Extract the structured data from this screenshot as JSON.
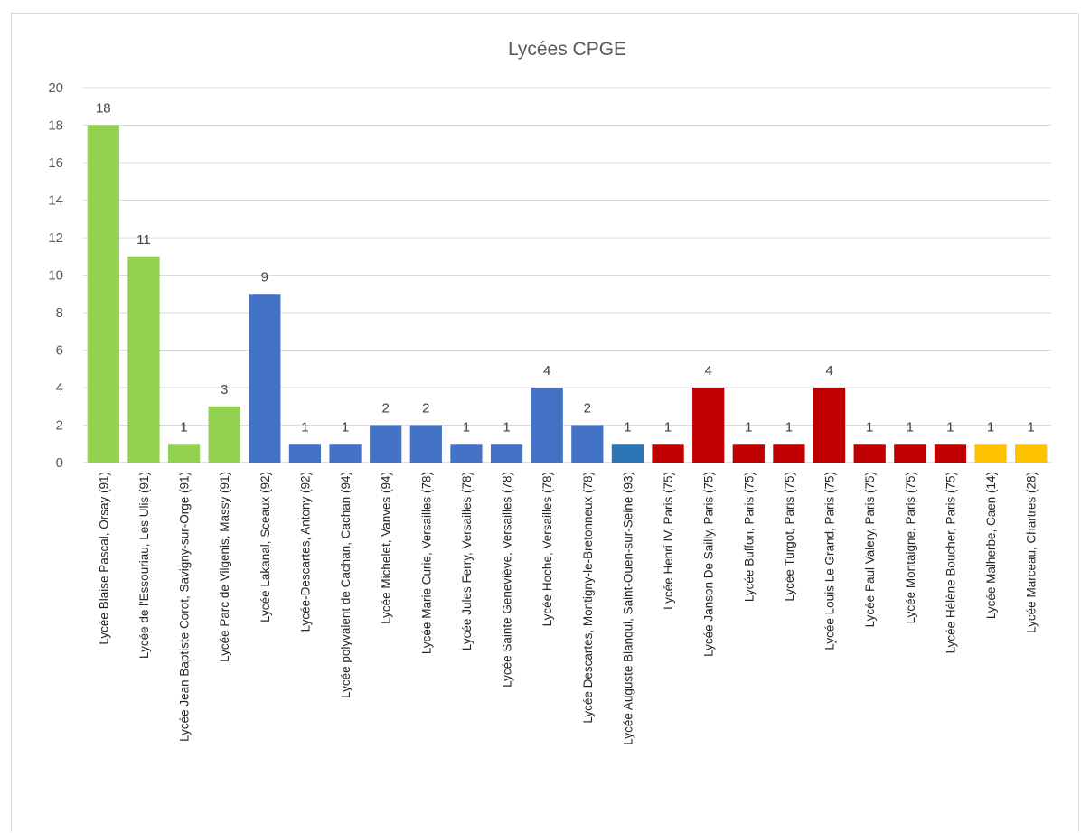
{
  "chart_data": {
    "type": "bar",
    "title": "Lycées CPGE",
    "xlabel": "",
    "ylabel": "",
    "ylim": [
      0,
      20
    ],
    "yticks": [
      0,
      2,
      4,
      6,
      8,
      10,
      12,
      14,
      16,
      18,
      20
    ],
    "grid": true,
    "legend": "none",
    "categories": [
      "Lycée Blaise Pascal, Orsay (91)",
      "Lycée de l'Essouriau, Les Ulis (91)",
      "Lycée Jean Baptiste Corot, Savigny-sur-Orge (91)",
      "Lycée Parc de Vilgenis, Massy  (91)",
      "Lycée Lakanal, Sceaux (92)",
      "Lycée-Descartes, Antony (92)",
      "Lycée polyvalent de Cachan, Cachan (94)",
      "Lycée Michelet, Vanves (94)",
      "Lycée Marie Curie,  Versailles (78)",
      "Lycée Jules Ferry,  Versailles (78)",
      "Lycée Sainte Geneviève,  Versailles (78)",
      "Lycée Hoche,  Versailles (78)",
      "Lycée Descartes, Montigny-le-Bretonneux (78)",
      "Lycée Auguste Blanqui, Saint-Ouen-sur-Seine (93)",
      "Lycée Henri IV, Paris (75)",
      "Lycée Janson De Sailly, Paris (75)",
      "Lycée Buffon, Paris (75)",
      "Lycée Turgot,  Paris (75)",
      "Lycée Louis Le Grand, Paris (75)",
      "Lycée Paul Valery, Paris (75)",
      "Lycée Montaigne, Paris (75)",
      "Lycée Hélène Boucher, Paris (75)",
      "Lycée Malherbe, Caen (14)",
      "Lycée Marceau, Chartres (28)"
    ],
    "values": [
      18,
      11,
      1,
      3,
      9,
      1,
      1,
      2,
      2,
      1,
      1,
      4,
      2,
      1,
      1,
      4,
      1,
      1,
      4,
      1,
      1,
      1,
      1,
      1
    ],
    "bar_colors": [
      "#92d050",
      "#92d050",
      "#92d050",
      "#92d050",
      "#4472c4",
      "#4472c4",
      "#4472c4",
      "#4472c4",
      "#4472c4",
      "#4472c4",
      "#4472c4",
      "#4472c4",
      "#4472c4",
      "#2e75b6",
      "#c00000",
      "#c00000",
      "#c00000",
      "#c00000",
      "#c00000",
      "#c00000",
      "#c00000",
      "#c00000",
      "#ffc000",
      "#ffc000"
    ],
    "data_labels": true
  }
}
